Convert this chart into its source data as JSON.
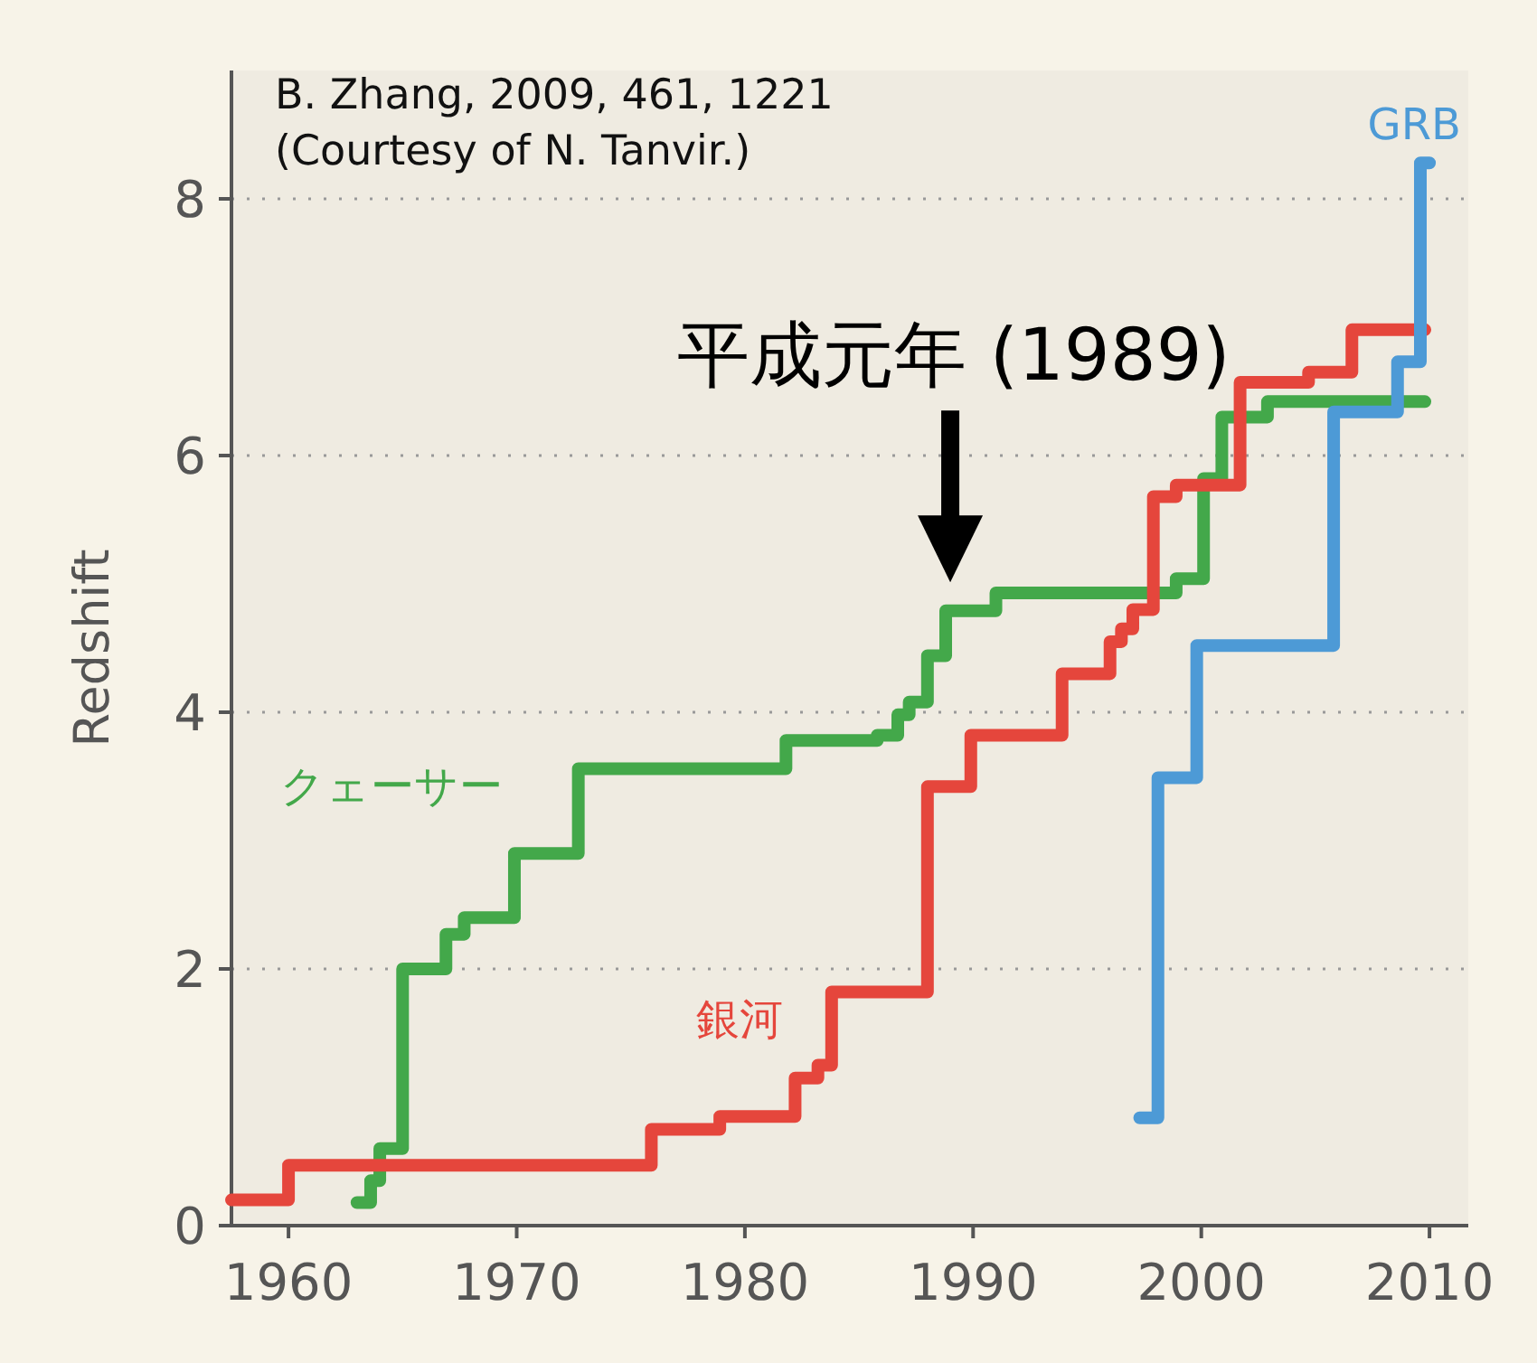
{
  "chart_data": {
    "type": "step",
    "ylabel": "Redshift",
    "xlim": [
      1957.5,
      2011.7
    ],
    "ylim": [
      0,
      9
    ],
    "xticks": [
      1960,
      1970,
      1980,
      1990,
      2000,
      2010
    ],
    "yticks": [
      0,
      2,
      4,
      6,
      8
    ],
    "grid": "y",
    "series": [
      {
        "name": "クェーサー",
        "color": "#43a84a",
        "x": [
          1963,
          1963.6,
          1964,
          1965,
          1966.9,
          1967.7,
          1969.9,
          1972.7,
          1981.8,
          1985.8,
          1986.7,
          1987.2,
          1988,
          1988.8,
          1991,
          1998.9,
          2000.1,
          2000.9,
          2002.9,
          2009.8
        ],
        "values": [
          0.18,
          0.35,
          0.6,
          2.0,
          2.27,
          2.4,
          2.9,
          3.56,
          3.78,
          3.82,
          3.98,
          4.08,
          4.44,
          4.79,
          4.93,
          5.04,
          5.82,
          6.3,
          6.42,
          6.42
        ]
      },
      {
        "name": "銀河",
        "color": "#e5463c",
        "x": [
          1957.5,
          1960,
          1975.9,
          1978.9,
          1982.2,
          1983.2,
          1983.8,
          1988,
          1989.9,
          1993.9,
          1996,
          1996.5,
          1997,
          1997.9,
          1998.9,
          2001.7,
          2004.7,
          2006.6,
          2009.8
        ],
        "values": [
          0.2,
          0.47,
          0.75,
          0.85,
          1.15,
          1.25,
          1.82,
          3.42,
          3.82,
          4.3,
          4.55,
          4.65,
          4.8,
          5.68,
          5.77,
          6.57,
          6.65,
          6.98,
          6.98
        ]
      },
      {
        "name": "GRB",
        "color": "#4d9ad6",
        "x": [
          1997.3,
          1998.1,
          1999.8,
          2005.8,
          2008.6,
          2009.6,
          2010
        ],
        "values": [
          0.84,
          3.49,
          4.52,
          6.34,
          6.73,
          8.28,
          8.28
        ]
      }
    ],
    "annotations": [
      "B. Zhang, 2009, 461, 1221\n(Courtesy of N. Tanvir.)",
      {
        "text": "平成元年 (1989)",
        "x": 1989,
        "y": 4.9
      }
    ]
  }
}
